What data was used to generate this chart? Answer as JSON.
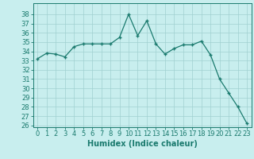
{
  "x": [
    0,
    1,
    2,
    3,
    4,
    5,
    6,
    7,
    8,
    9,
    10,
    11,
    12,
    13,
    14,
    15,
    16,
    17,
    18,
    19,
    20,
    21,
    22,
    23
  ],
  "y": [
    33.2,
    33.8,
    33.7,
    33.4,
    34.5,
    34.8,
    34.8,
    34.8,
    34.8,
    35.5,
    38.0,
    35.7,
    37.3,
    34.8,
    33.7,
    34.3,
    34.7,
    34.7,
    35.1,
    33.6,
    31.0,
    29.5,
    28.0,
    26.2
  ],
  "line_color": "#1a7a6e",
  "marker": "+",
  "bg_color": "#c8eeee",
  "grid_color": "#a0d0d0",
  "xlabel": "Humidex (Indice chaleur)",
  "ylim_min": 26,
  "ylim_max": 39,
  "xlim_min": -0.5,
  "xlim_max": 23.5,
  "yticks": [
    26,
    27,
    28,
    29,
    30,
    31,
    32,
    33,
    34,
    35,
    36,
    37,
    38
  ],
  "xticks": [
    0,
    1,
    2,
    3,
    4,
    5,
    6,
    7,
    8,
    9,
    10,
    11,
    12,
    13,
    14,
    15,
    16,
    17,
    18,
    19,
    20,
    21,
    22,
    23
  ],
  "axis_color": "#1a7a6e",
  "tick_fontsize": 6,
  "label_fontsize": 7,
  "linewidth": 0.9,
  "markersize": 3,
  "markeredgewidth": 1.0
}
